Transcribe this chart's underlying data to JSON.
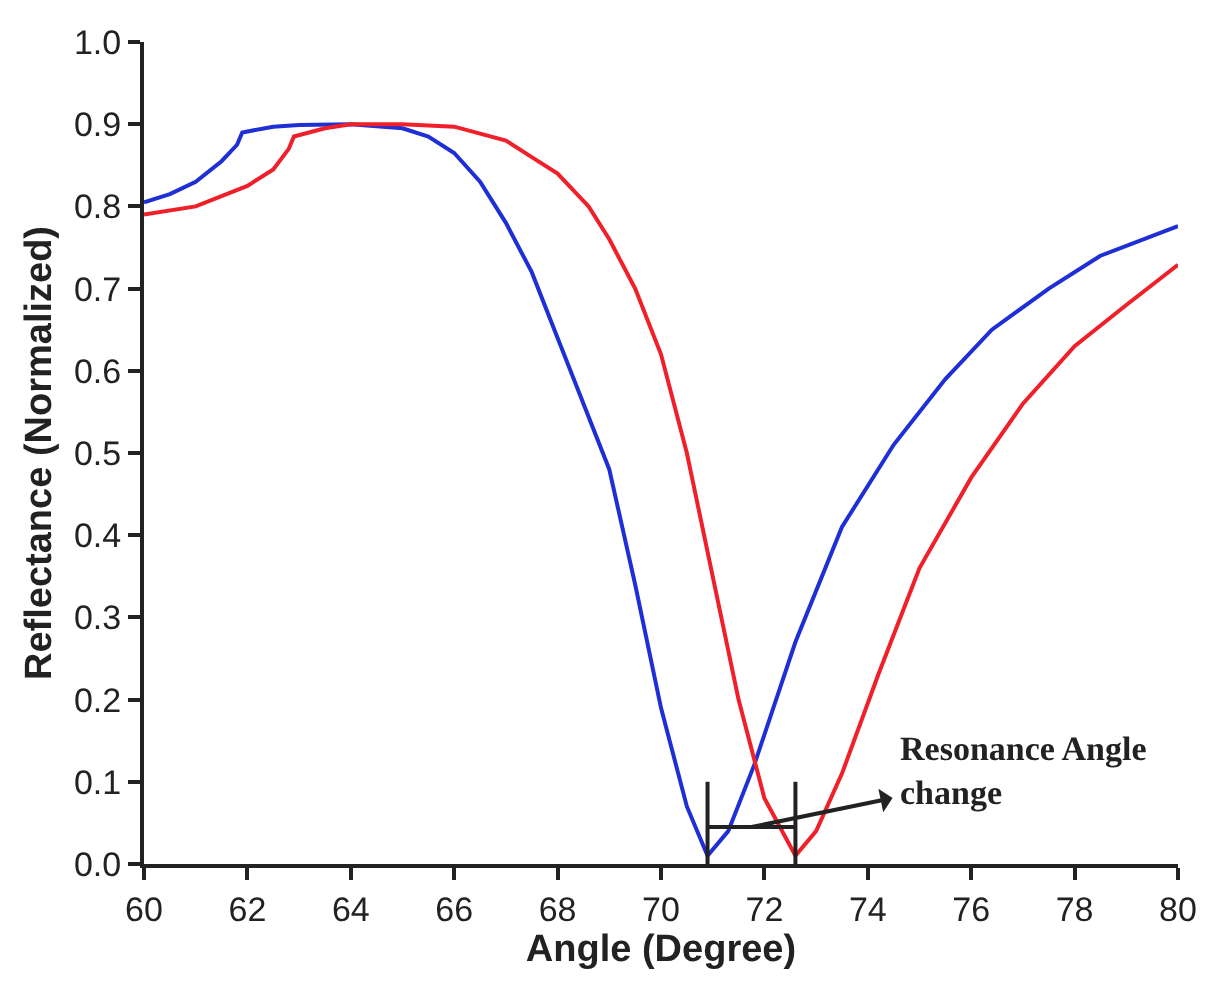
{
  "chart_data": {
    "type": "line",
    "xlabel": "Angle (Degree)",
    "ylabel": "Reflectance (Normalized)",
    "xlim": [
      60,
      80
    ],
    "xticks": [
      60,
      62,
      64,
      66,
      68,
      70,
      72,
      74,
      76,
      78,
      80
    ],
    "ylim": [
      0,
      1.0
    ],
    "yticks": [
      {
        "value": 0,
        "label": "0.0"
      },
      0.1,
      0.2,
      0.3,
      0.4,
      0.5,
      0.6,
      0.7,
      0.8,
      0.9,
      {
        "value": 1.0,
        "label": "1.0"
      }
    ],
    "marker": "none",
    "line_style": "solid",
    "series": [
      {
        "color": "#1f2fd6",
        "x": [
          60,
          60.5,
          61,
          61.5,
          61.8,
          61.9,
          62.5,
          63,
          64,
          65,
          65.5,
          66,
          66.5,
          67,
          67.5,
          68,
          68.5,
          69,
          69.5,
          70,
          70.5,
          70.9,
          71.3,
          71.8,
          72.6,
          73.5,
          74.5,
          75.5,
          76.4,
          77.5,
          78.5,
          80
        ],
        "values": [
          0.805,
          0.815,
          0.83,
          0.855,
          0.875,
          0.89,
          0.897,
          0.899,
          0.9,
          0.895,
          0.885,
          0.865,
          0.83,
          0.78,
          0.72,
          0.64,
          0.56,
          0.48,
          0.34,
          0.19,
          0.07,
          0.01,
          0.04,
          0.12,
          0.27,
          0.41,
          0.51,
          0.59,
          0.65,
          0.7,
          0.74,
          0.776
        ]
      },
      {
        "color": "#f0202a",
        "x": [
          60,
          61,
          62,
          62.5,
          62.8,
          62.9,
          63.5,
          64,
          65,
          66,
          67,
          67.5,
          68,
          68.6,
          69,
          69.5,
          70,
          70.5,
          71,
          71.5,
          72,
          72.6,
          73,
          73.5,
          74.2,
          75,
          76,
          77,
          78,
          79,
          80
        ],
        "values": [
          0.79,
          0.8,
          0.825,
          0.845,
          0.87,
          0.885,
          0.895,
          0.9,
          0.9,
          0.897,
          0.88,
          0.86,
          0.84,
          0.8,
          0.76,
          0.7,
          0.62,
          0.5,
          0.35,
          0.2,
          0.08,
          0.01,
          0.04,
          0.11,
          0.23,
          0.36,
          0.47,
          0.56,
          0.63,
          0.68,
          0.729
        ]
      }
    ],
    "annotations": [
      "Resonance Angle\nchange"
    ]
  }
}
